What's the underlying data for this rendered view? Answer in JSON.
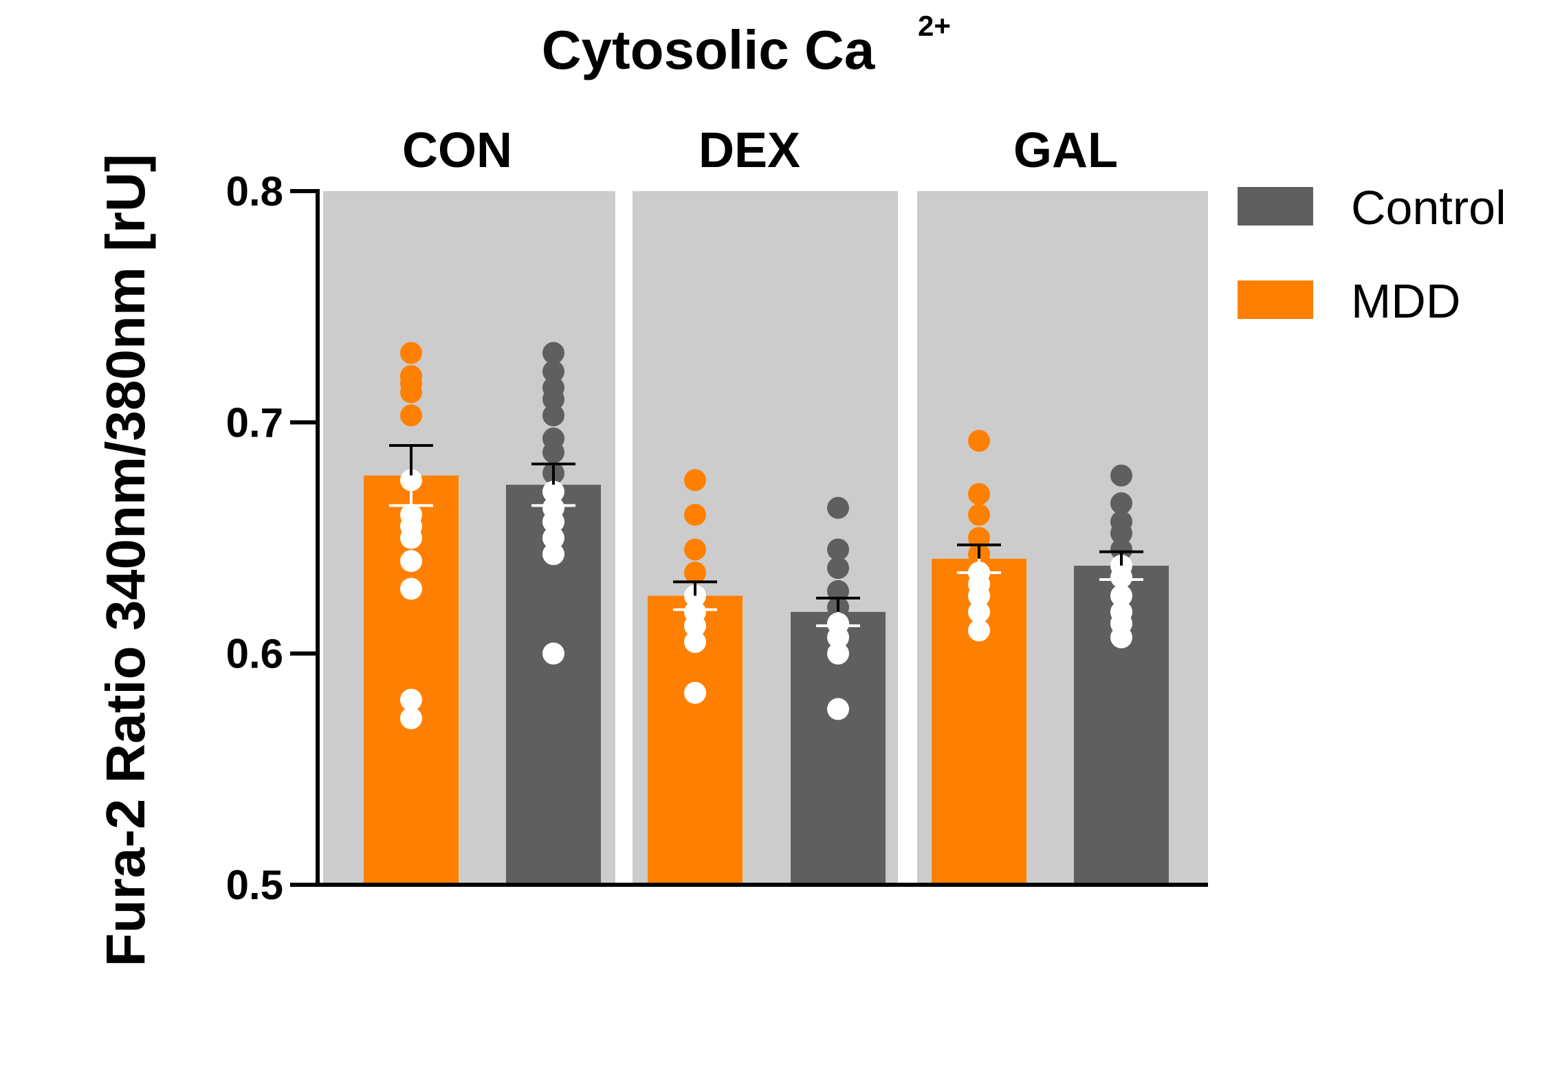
{
  "chart_data": {
    "type": "bar",
    "title": "Cytosolic Ca",
    "title_superscript": "2+",
    "ylabel": "Fura-2 Ratio 340nm/380nm [rU]",
    "ylim": [
      0.5,
      0.8
    ],
    "yticks": [
      0.5,
      0.6,
      0.7,
      0.8
    ],
    "ytick_labels": [
      "0.5",
      "0.6",
      "0.7",
      "0.8"
    ],
    "groups": [
      "CON",
      "DEX",
      "GAL"
    ],
    "legend_position": "top-right",
    "series": [
      {
        "name": "MDD",
        "color": "#ff8000",
        "values": [
          0.677,
          0.625,
          0.641
        ],
        "sem": [
          0.013,
          0.006,
          0.006
        ],
        "points": [
          [
            0.73,
            0.72,
            0.717,
            0.713,
            0.703,
            0.675,
            0.66,
            0.655,
            0.65,
            0.64,
            0.628,
            0.58,
            0.572
          ],
          [
            0.675,
            0.66,
            0.645,
            0.635,
            0.625,
            0.618,
            0.612,
            0.605,
            0.583
          ],
          [
            0.692,
            0.669,
            0.66,
            0.65,
            0.643,
            0.635,
            0.63,
            0.625,
            0.618,
            0.61
          ]
        ]
      },
      {
        "name": "Control",
        "color": "#5f5f5f",
        "values": [
          0.673,
          0.618,
          0.638
        ],
        "sem": [
          0.009,
          0.006,
          0.006
        ],
        "points": [
          [
            0.73,
            0.722,
            0.715,
            0.71,
            0.703,
            0.693,
            0.687,
            0.678,
            0.67,
            0.663,
            0.657,
            0.65,
            0.643,
            0.6
          ],
          [
            0.663,
            0.645,
            0.637,
            0.627,
            0.62,
            0.613,
            0.607,
            0.6,
            0.576
          ],
          [
            0.677,
            0.665,
            0.657,
            0.652,
            0.645,
            0.638,
            0.633,
            0.625,
            0.618,
            0.613,
            0.607
          ]
        ]
      }
    ],
    "legend": [
      {
        "label": "Control",
        "color": "#5f5f5f"
      },
      {
        "label": "MDD",
        "color": "#ff8000"
      }
    ],
    "panel_background": "#cccccc"
  }
}
